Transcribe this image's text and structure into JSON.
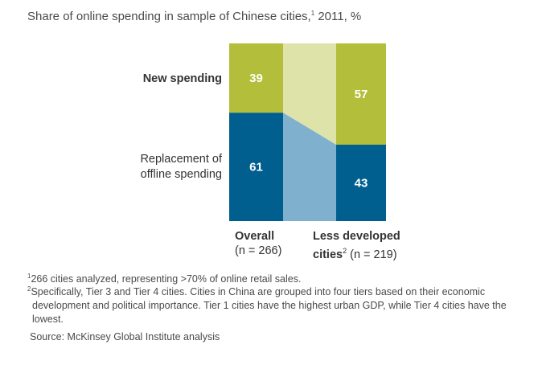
{
  "title": {
    "text": "Share of online spending in sample of Chinese cities,",
    "sup": "1",
    "tail": " 2011, %"
  },
  "colors": {
    "new_spending": "#b3be3a",
    "replacement": "#005f8f",
    "connector_top": "#dee3aa",
    "connector_bottom": "#7fb0cd"
  },
  "chart_data": {
    "type": "bar",
    "stacked": true,
    "normalized": true,
    "title": "Share of online spending in sample of Chinese cities, 2011, %",
    "categories": [
      "Overall",
      "Less developed cities"
    ],
    "series": [
      {
        "name": "Replacement of offline spending",
        "values": [
          61,
          43
        ]
      },
      {
        "name": "New spending",
        "values": [
          39,
          57
        ]
      }
    ],
    "row_labels": {
      "new": "New spending",
      "replacement_line1": "Replacement of",
      "replacement_line2": "offline spending"
    },
    "x_labels": [
      {
        "name": "Overall",
        "sample": "(n = 266)"
      },
      {
        "name": "Less developed",
        "name_line2": "cities",
        "sup": "2",
        "sample": "(n = 219)"
      }
    ],
    "ylim": [
      0,
      100
    ]
  },
  "footnotes": [
    {
      "sup": "1",
      "text": "266 cities analyzed, representing >70% of online retail sales."
    },
    {
      "sup": "2",
      "text": "Specifically, Tier 3 and Tier 4 cities. Cities in China are grouped into four tiers based on their economic development and political importance. Tier 1 cities have the highest urban GDP, while Tier 4 cities have the lowest."
    }
  ],
  "source": "Source: McKinsey Global Institute analysis"
}
